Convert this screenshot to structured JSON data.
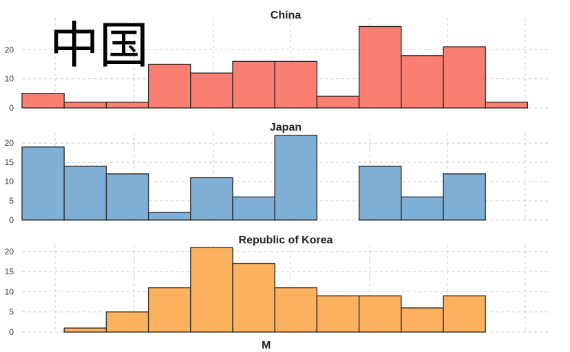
{
  "overlay_text": "中国",
  "xlabel_partial": "M",
  "chart_data": [
    {
      "type": "bar",
      "title": "China",
      "color": "#fa7f72",
      "ylim": [
        0,
        30
      ],
      "yticks": [
        0,
        10,
        20
      ],
      "values": [
        5,
        2,
        2,
        15,
        12,
        16,
        16,
        4,
        28,
        18,
        21,
        2
      ]
    },
    {
      "type": "bar",
      "title": "Japan",
      "color": "#7fafd4",
      "ylim": [
        0,
        22
      ],
      "yticks": [
        0,
        5,
        10,
        15,
        20
      ],
      "values": [
        19,
        14,
        12,
        2,
        11,
        6,
        22,
        0,
        14,
        6,
        12,
        0
      ]
    },
    {
      "type": "bar",
      "title": "Republic of Korea",
      "color": "#fbb15d",
      "ylim": [
        0,
        21
      ],
      "yticks": [
        0,
        5,
        10,
        15,
        20
      ],
      "values": [
        0,
        1,
        5,
        11,
        21,
        17,
        11,
        9,
        9,
        6,
        9,
        0
      ]
    }
  ]
}
